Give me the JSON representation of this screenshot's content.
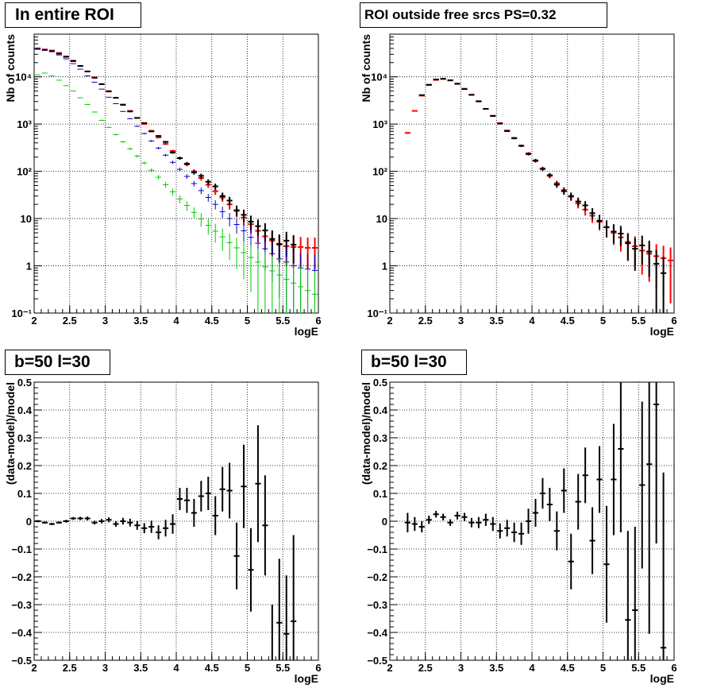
{
  "panels": [
    {
      "title": "In entire ROI",
      "chart_data": {
        "type": "scatter",
        "log_y": true,
        "xlabel": "logE",
        "ylabel": "Nb of counts",
        "xlim": [
          2,
          6
        ],
        "ylim": [
          0.1,
          80000
        ],
        "xticks": [
          "2",
          "2.5",
          "3",
          "3.5",
          "4",
          "4.5",
          "5",
          "5.5",
          "6"
        ],
        "yticks": [
          {
            "v": 0.1,
            "label": "10⁻¹"
          },
          {
            "v": 1,
            "label": "1"
          },
          {
            "v": 10,
            "label": "10"
          },
          {
            "v": 100,
            "label": "10²"
          },
          {
            "v": 1000,
            "label": "10³"
          },
          {
            "v": 10000,
            "label": "10⁴"
          }
        ],
        "grid": true,
        "bin_half_width": 0.05,
        "series": [
          {
            "color": "#ff0000",
            "x": [
              2.05,
              2.15,
              2.25,
              2.35,
              2.45,
              2.55,
              2.65,
              2.75,
              2.85,
              2.95,
              3.05,
              3.15,
              3.25,
              3.35,
              3.45,
              3.55,
              3.65,
              3.75,
              3.85,
              3.95,
              4.05,
              4.15,
              4.25,
              4.35,
              4.45,
              4.55,
              4.65,
              4.75,
              4.85,
              4.95,
              5.05,
              5.15,
              5.25,
              5.35,
              5.45,
              5.55,
              5.65,
              5.75,
              5.85,
              5.95
            ],
            "y": [
              40000,
              38000,
              36000,
              32000,
              27000,
              22000,
              17000,
              13000,
              9500,
              7000,
              5000,
              3600,
              2600,
              1900,
              1350,
              1000,
              720,
              520,
              380,
              270,
              190,
              140,
              100,
              72,
              52,
              38,
              28,
              20,
              14.5,
              10.5,
              7.6,
              5.5,
              4.2,
              3.4,
              2.8,
              2.6,
              2.5,
              2.5,
              2.4,
              2.4
            ]
          },
          {
            "color": "#000000",
            "x": [
              2.05,
              2.15,
              2.25,
              2.35,
              2.45,
              2.55,
              2.65,
              2.75,
              2.85,
              2.95,
              3.05,
              3.15,
              3.25,
              3.35,
              3.45,
              3.55,
              3.65,
              3.75,
              3.85,
              3.95,
              4.05,
              4.15,
              4.25,
              4.35,
              4.45,
              4.55,
              4.65,
              4.75,
              4.85,
              4.95,
              5.05,
              5.15,
              5.25,
              5.35,
              5.45,
              5.55,
              5.65
            ],
            "y": [
              39000,
              37000,
              35000,
              31000,
              26500,
              21500,
              17000,
              13000,
              9700,
              7000,
              4900,
              3600,
              2550,
              1850,
              1350,
              1050,
              700,
              560,
              420,
              250,
              190,
              145,
              95,
              80,
              60,
              48,
              30,
              24,
              15,
              12,
              8.6,
              6.9,
              5.6,
              3.7,
              2.9,
              3.4,
              2.8
            ]
          },
          {
            "color": "#0000cc",
            "x": [
              2.05,
              2.15,
              2.25,
              2.35,
              2.45,
              2.55,
              2.65,
              2.75,
              2.85,
              2.95,
              3.05,
              3.15,
              3.25,
              3.35,
              3.45,
              3.55,
              3.65,
              3.75,
              3.85,
              3.95,
              4.05,
              4.15,
              4.25,
              4.35,
              4.45,
              4.55,
              4.65,
              4.75,
              4.85,
              4.95,
              5.05,
              5.15,
              5.25,
              5.35,
              5.45,
              5.55,
              5.65,
              5.75,
              5.85,
              5.95
            ],
            "y": [
              39000,
              37000,
              34000,
              29000,
              24000,
              19000,
              14500,
              10500,
              7700,
              5500,
              3700,
              2700,
              1850,
              1300,
              900,
              630,
              440,
              310,
              220,
              155,
              110,
              78,
              55,
              39,
              28,
              20,
              14,
              10,
              7.5,
              5.5,
              4.0,
              3.0,
              2.3,
              1.8,
              1.4,
              1.2,
              1.0,
              0.9,
              0.85,
              0.8
            ]
          },
          {
            "color": "#00cc00",
            "x": [
              2.05,
              2.15,
              2.25,
              2.35,
              2.45,
              2.55,
              2.65,
              2.75,
              2.85,
              2.95,
              3.05,
              3.15,
              3.25,
              3.35,
              3.45,
              3.55,
              3.65,
              3.75,
              3.85,
              3.95,
              4.05,
              4.15,
              4.25,
              4.35,
              4.45,
              4.55,
              4.65,
              4.75,
              4.85,
              4.95,
              5.05,
              5.15,
              5.25,
              5.35,
              5.45,
              5.55,
              5.65,
              5.75,
              5.85,
              5.95
            ],
            "y": [
              11000,
              12000,
              10500,
              8500,
              6500,
              5000,
              3600,
              2600,
              1800,
              1200,
              850,
              600,
              420,
              300,
              210,
              150,
              105,
              75,
              52,
              37,
              26,
              19,
              13.5,
              9.8,
              7.2,
              5.4,
              4.1,
              3.1,
              2.4,
              1.9,
              1.5,
              1.2,
              0.95,
              0.78,
              0.64,
              0.52,
              0.43,
              0.36,
              0.3,
              0.25
            ]
          }
        ]
      }
    },
    {
      "title": "ROI outside free srcs PS=0.32",
      "chart_data": {
        "type": "scatter",
        "log_y": true,
        "xlabel": "logE",
        "ylabel": "Nb of counts",
        "xlim": [
          2,
          6
        ],
        "ylim": [
          0.1,
          80000
        ],
        "xticks": [
          "2",
          "2.5",
          "3",
          "3.5",
          "4",
          "4.5",
          "5",
          "5.5",
          "6"
        ],
        "yticks": [
          {
            "v": 0.1,
            "label": "10⁻¹"
          },
          {
            "v": 1,
            "label": "1"
          },
          {
            "v": 10,
            "label": "10"
          },
          {
            "v": 100,
            "label": "10²"
          },
          {
            "v": 1000,
            "label": "10³"
          },
          {
            "v": 10000,
            "label": "10⁴"
          }
        ],
        "grid": true,
        "bin_half_width": 0.05,
        "series": [
          {
            "color": "#ff0000",
            "x": [
              2.25,
              2.35,
              2.45,
              2.55,
              2.65,
              2.75,
              2.85,
              2.95,
              3.05,
              3.15,
              3.25,
              3.35,
              3.45,
              3.55,
              3.65,
              3.75,
              3.85,
              3.95,
              4.05,
              4.15,
              4.25,
              4.35,
              4.45,
              4.55,
              4.65,
              4.75,
              4.85,
              4.95,
              5.05,
              5.15,
              5.25,
              5.35,
              5.45,
              5.55,
              5.65,
              5.75,
              5.85,
              5.95
            ],
            "y": [
              650,
              1900,
              4000,
              6700,
              8600,
              9000,
              8500,
              7200,
              5600,
              4200,
              3000,
              2100,
              1500,
              1050,
              730,
              510,
              350,
              240,
              165,
              115,
              80,
              56,
              40,
              29,
              21,
              15.5,
              11.5,
              8.5,
              6.5,
              5.0,
              4.0,
              3.2,
              2.6,
              2.1,
              1.8,
              1.6,
              1.45,
              1.3
            ]
          },
          {
            "color": "#000000",
            "x": [
              2.45,
              2.55,
              2.65,
              2.75,
              2.85,
              2.95,
              3.05,
              3.15,
              3.25,
              3.35,
              3.45,
              3.55,
              3.65,
              3.75,
              3.85,
              3.95,
              4.05,
              4.15,
              4.25,
              4.35,
              4.45,
              4.55,
              4.65,
              4.75,
              4.85,
              4.95,
              5.05,
              5.15,
              5.25,
              5.35,
              5.45,
              5.55,
              5.65,
              5.75,
              5.85
            ],
            "y": [
              4100,
              6800,
              8800,
              9100,
              8400,
              7100,
              5500,
              4150,
              3050,
              2100,
              1480,
              1020,
              710,
              500,
              345,
              232,
              170,
              112,
              83,
              52,
              38,
              30,
              23,
              19,
              13,
              9,
              6.6,
              5.3,
              4.8,
              3.0,
              2.3,
              2.7,
              2.0,
              1.1,
              0.7
            ]
          }
        ]
      }
    },
    {
      "title": "b=50 l=30",
      "chart_data": {
        "type": "scatter",
        "log_y": false,
        "xlabel": "logE",
        "ylabel": "(data-model)/model",
        "xlim": [
          2,
          6
        ],
        "ylim": [
          -0.5,
          0.5
        ],
        "xticks": [
          "2",
          "2.5",
          "3",
          "3.5",
          "4",
          "4.5",
          "5",
          "5.5",
          "6"
        ],
        "yticks": [
          {
            "v": -0.5,
            "label": "−0.5"
          },
          {
            "v": -0.4,
            "label": "−0.4"
          },
          {
            "v": -0.3,
            "label": "−0.3"
          },
          {
            "v": -0.2,
            "label": "−0.2"
          },
          {
            "v": -0.1,
            "label": "−0.1"
          },
          {
            "v": 0,
            "label": "0"
          },
          {
            "v": 0.1,
            "label": "0.1"
          },
          {
            "v": 0.2,
            "label": "0.2"
          },
          {
            "v": 0.3,
            "label": "0.3"
          },
          {
            "v": 0.4,
            "label": "0.4"
          },
          {
            "v": 0.5,
            "label": "0.5"
          }
        ],
        "grid": true,
        "bin_half_width": 0.05,
        "series": [
          {
            "color": "#000000",
            "x": [
              2.05,
              2.15,
              2.25,
              2.35,
              2.45,
              2.55,
              2.65,
              2.75,
              2.85,
              2.95,
              3.05,
              3.15,
              3.25,
              3.35,
              3.45,
              3.55,
              3.65,
              3.75,
              3.85,
              3.95,
              4.05,
              4.15,
              4.25,
              4.35,
              4.45,
              4.55,
              4.65,
              4.75,
              4.85,
              4.95,
              5.05,
              5.15,
              5.25,
              5.35,
              5.45,
              5.55,
              5.65
            ],
            "y": [
              0.0,
              -0.005,
              -0.01,
              -0.005,
              0.0,
              0.01,
              0.01,
              0.01,
              -0.005,
              0.0,
              0.005,
              -0.01,
              0.0,
              -0.005,
              -0.015,
              -0.025,
              -0.02,
              -0.04,
              -0.025,
              -0.01,
              0.08,
              0.075,
              0.03,
              0.09,
              0.1,
              0.02,
              0.115,
              0.11,
              -0.125,
              0.125,
              -0.175,
              0.135,
              -0.015,
              -0.55,
              -0.365,
              -0.405,
              -0.36
            ],
            "err": [
              0.004,
              0.004,
              0.004,
              0.004,
              0.005,
              0.005,
              0.006,
              0.007,
              0.007,
              0.008,
              0.009,
              0.01,
              0.012,
              0.014,
              0.016,
              0.018,
              0.022,
              0.025,
              0.03,
              0.035,
              0.04,
              0.045,
              0.05,
              0.055,
              0.06,
              0.07,
              0.08,
              0.1,
              0.12,
              0.15,
              0.15,
              0.21,
              0.18,
              0.25,
              0.23,
              0.21,
              0.31
            ]
          }
        ]
      }
    },
    {
      "title": "b=50 l=30",
      "chart_data": {
        "type": "scatter",
        "log_y": false,
        "xlabel": "logE",
        "ylabel": "(data-model)/model",
        "xlim": [
          2,
          6
        ],
        "ylim": [
          -0.5,
          0.5
        ],
        "xticks": [
          "2",
          "2.5",
          "3",
          "3.5",
          "4",
          "4.5",
          "5",
          "5.5",
          "6"
        ],
        "yticks": [
          {
            "v": -0.5,
            "label": "−0.5"
          },
          {
            "v": -0.4,
            "label": "−0.4"
          },
          {
            "v": -0.3,
            "label": "−0.3"
          },
          {
            "v": -0.2,
            "label": "−0.2"
          },
          {
            "v": -0.1,
            "label": "−0.1"
          },
          {
            "v": 0,
            "label": "0"
          },
          {
            "v": 0.1,
            "label": "0.1"
          },
          {
            "v": 0.2,
            "label": "0.2"
          },
          {
            "v": 0.3,
            "label": "0.3"
          },
          {
            "v": 0.4,
            "label": "0.4"
          },
          {
            "v": 0.5,
            "label": "0.5"
          }
        ],
        "grid": true,
        "bin_half_width": 0.05,
        "series": [
          {
            "color": "#000000",
            "x": [
              2.25,
              2.35,
              2.45,
              2.55,
              2.65,
              2.75,
              2.85,
              2.95,
              3.05,
              3.15,
              3.25,
              3.35,
              3.45,
              3.55,
              3.65,
              3.75,
              3.85,
              3.95,
              4.05,
              4.15,
              4.25,
              4.35,
              4.45,
              4.55,
              4.65,
              4.75,
              4.85,
              4.95,
              5.05,
              5.15,
              5.25,
              5.35,
              5.45,
              5.55,
              5.65,
              5.75,
              5.85
            ],
            "y": [
              -0.005,
              -0.01,
              -0.02,
              0.005,
              0.025,
              0.015,
              -0.005,
              0.02,
              0.015,
              -0.005,
              -0.005,
              0.005,
              -0.01,
              -0.035,
              -0.025,
              -0.04,
              -0.045,
              0.0,
              0.03,
              0.1,
              0.06,
              -0.035,
              0.11,
              -0.145,
              0.07,
              0.165,
              -0.07,
              0.15,
              -0.155,
              0.15,
              0.26,
              -0.355,
              -0.32,
              0.13,
              0.205,
              0.42,
              -0.455
            ],
            "err": [
              0.035,
              0.025,
              0.02,
              0.015,
              0.012,
              0.012,
              0.012,
              0.014,
              0.015,
              0.017,
              0.02,
              0.022,
              0.025,
              0.027,
              0.03,
              0.035,
              0.04,
              0.045,
              0.05,
              0.055,
              0.06,
              0.07,
              0.08,
              0.1,
              0.1,
              0.1,
              0.12,
              0.12,
              0.21,
              0.2,
              0.3,
              0.32,
              0.3,
              0.3,
              0.61,
              0.5,
              0.63
            ]
          }
        ]
      }
    }
  ]
}
